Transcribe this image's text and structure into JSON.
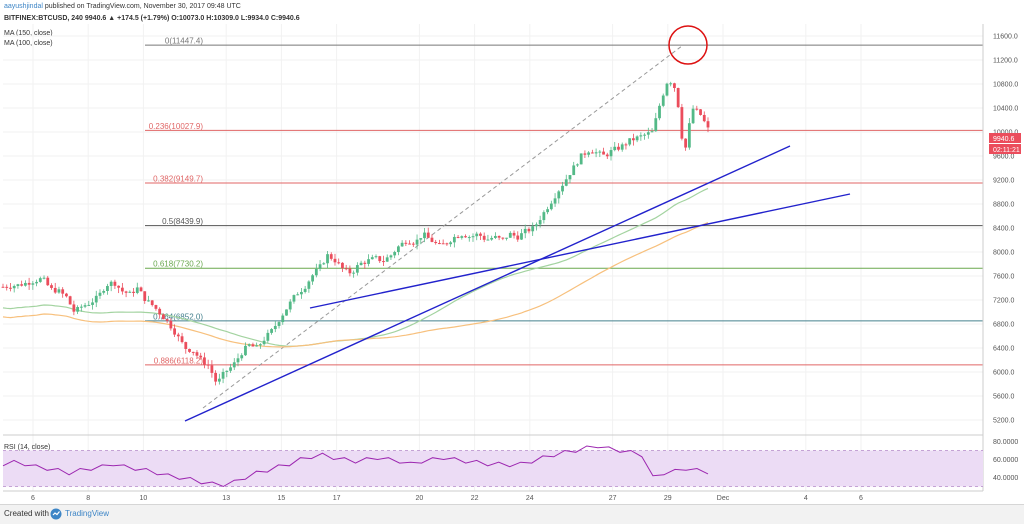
{
  "header": {
    "author": "aayushjindal",
    "published": "published on TradingView.com, November 30, 2017 09:48 UTC",
    "symbol_line": "BITFINEX:BTCUSD, 240  9940.6  ▲ +174.5 (+1.79%)  O:10073.0  H:10309.0  L:9934.0  C:9940.6",
    "ma_150": "MA (150, close)",
    "ma_100": "MA (100, close)"
  },
  "rsi": {
    "label": "RSI (14, close)"
  },
  "price_badge": {
    "value": "9940.6",
    "timer": "02:11:21"
  },
  "footer": {
    "created_with": "Created with",
    "brand": "TradingView"
  },
  "colors": {
    "up": "#53b987",
    "down": "#eb4d5c",
    "ma150": "#a3d3a0",
    "ma100": "#f7c07d",
    "trendline": "#2222cc",
    "fib_red": "#e06666",
    "fib_green": "#6aa84f",
    "fib_teal": "#45818e",
    "fib_gray": "#777777",
    "rsi_line": "#9c27b0",
    "rsi_band": "#ecdcf5",
    "circle": "#dd1111"
  },
  "chart_data": {
    "type": "candlestick",
    "x_ticks": [
      "6",
      "8",
      "10",
      "13",
      "15",
      "17",
      "20",
      "22",
      "24",
      "27",
      "29",
      "Dec",
      "4",
      "6"
    ],
    "y_ticks": [
      "11600.0",
      "11200.0",
      "10800.0",
      "10400.0",
      "10000.0",
      "9600.0",
      "9200.0",
      "8800.0",
      "8400.0",
      "8000.0",
      "7600.0",
      "7200.0",
      "6800.0",
      "6400.0",
      "6000.0",
      "5600.0",
      "5200.0"
    ],
    "ylim": [
      5000,
      11800
    ],
    "rsi_ticks": [
      "80.0000",
      "60.0000",
      "40.0000"
    ],
    "rsi_ylim": [
      25,
      85
    ],
    "fib_levels": [
      {
        "label": "0(11447.4)",
        "value": 11447.4,
        "color": "#777777"
      },
      {
        "label": "0.236(10027.9)",
        "value": 10027.9,
        "color": "#e06666"
      },
      {
        "label": "0.382(9149.7)",
        "value": 9149.7,
        "color": "#e06666"
      },
      {
        "label": "0.5(8439.9)",
        "value": 8439.9,
        "color": "#555555"
      },
      {
        "label": "0.618(7730.2)",
        "value": 7730.2,
        "color": "#6aa84f"
      },
      {
        "label": "0.764(6852.0)",
        "value": 6852.0,
        "color": "#45818e"
      },
      {
        "label": "0.886(6118.2)",
        "value": 6118.2,
        "color": "#e06666"
      }
    ],
    "price_path": [
      [
        0,
        7420
      ],
      [
        2,
        7450
      ],
      [
        4,
        7520
      ],
      [
        5,
        7560
      ],
      [
        6,
        7380
      ],
      [
        7,
        7350
      ],
      [
        8,
        7250
      ],
      [
        9,
        7000
      ],
      [
        10,
        7100
      ],
      [
        11,
        7150
      ],
      [
        12,
        7250
      ],
      [
        13,
        7450
      ],
      [
        14,
        7500
      ],
      [
        15,
        7350
      ],
      [
        16,
        7300
      ],
      [
        17,
        7400
      ],
      [
        18,
        7200
      ],
      [
        19,
        7100
      ],
      [
        20,
        6950
      ],
      [
        21,
        6800
      ],
      [
        22,
        6600
      ],
      [
        23,
        6400
      ],
      [
        24,
        6350
      ],
      [
        25,
        6200
      ],
      [
        26,
        6100
      ],
      [
        27,
        5800
      ],
      [
        28,
        6000
      ],
      [
        29,
        6100
      ],
      [
        30,
        6300
      ],
      [
        31,
        6450
      ],
      [
        32,
        6400
      ],
      [
        33,
        6550
      ],
      [
        34,
        6700
      ],
      [
        35,
        6900
      ],
      [
        36,
        7100
      ],
      [
        37,
        7300
      ],
      [
        38,
        7400
      ],
      [
        39,
        7600
      ],
      [
        40,
        7750
      ],
      [
        41,
        7950
      ],
      [
        42,
        7850
      ],
      [
        43,
        7700
      ],
      [
        44,
        7650
      ],
      [
        45,
        7800
      ],
      [
        46,
        7850
      ],
      [
        47,
        7900
      ],
      [
        48,
        7850
      ],
      [
        49,
        7950
      ],
      [
        50,
        8100
      ],
      [
        51,
        8200
      ],
      [
        52,
        8150
      ],
      [
        53,
        8300
      ],
      [
        54,
        8200
      ],
      [
        55,
        8100
      ],
      [
        56,
        8150
      ],
      [
        57,
        8250
      ],
      [
        58,
        8300
      ],
      [
        59,
        8250
      ],
      [
        60,
        8300
      ],
      [
        61,
        8200
      ],
      [
        62,
        8250
      ],
      [
        63,
        8200
      ],
      [
        64,
        8300
      ],
      [
        65,
        8250
      ],
      [
        66,
        8350
      ],
      [
        67,
        8400
      ],
      [
        68,
        8600
      ],
      [
        69,
        8800
      ],
      [
        70,
        9000
      ],
      [
        71,
        9200
      ],
      [
        72,
        9400
      ],
      [
        73,
        9600
      ],
      [
        74,
        9700
      ],
      [
        75,
        9650
      ],
      [
        76,
        9600
      ],
      [
        77,
        9700
      ],
      [
        78,
        9750
      ],
      [
        79,
        9850
      ],
      [
        80,
        9900
      ],
      [
        81,
        9950
      ],
      [
        82,
        10000
      ],
      [
        83,
        10500
      ],
      [
        84,
        10900
      ],
      [
        85,
        10700
      ],
      [
        86,
        9600
      ],
      [
        87,
        10400
      ],
      [
        88,
        10300
      ],
      [
        89,
        10050
      ]
    ],
    "candle_x": [
      1,
      89
    ],
    "rsi_values": [
      55,
      57,
      55,
      52,
      50,
      48,
      45,
      48,
      50,
      52,
      55,
      52,
      50,
      48,
      45,
      42,
      40,
      38,
      35,
      33,
      32,
      35,
      40,
      45,
      48,
      52,
      55,
      60,
      63,
      65,
      62,
      60,
      58,
      60,
      62,
      60,
      58,
      55,
      58,
      60,
      62,
      60,
      58,
      57,
      55,
      55,
      54,
      55,
      58,
      62,
      65,
      68,
      70,
      73,
      75,
      72,
      70,
      68,
      65,
      40,
      45,
      47,
      50,
      48,
      46
    ],
    "trendlines": [
      {
        "from": [
          5600,
          13.0
        ],
        "to": [
          10500,
          35.0
        ]
      },
      {
        "from": [
          8000,
          21.0
        ],
        "to": [
          9200,
          43.5
        ]
      }
    ]
  }
}
